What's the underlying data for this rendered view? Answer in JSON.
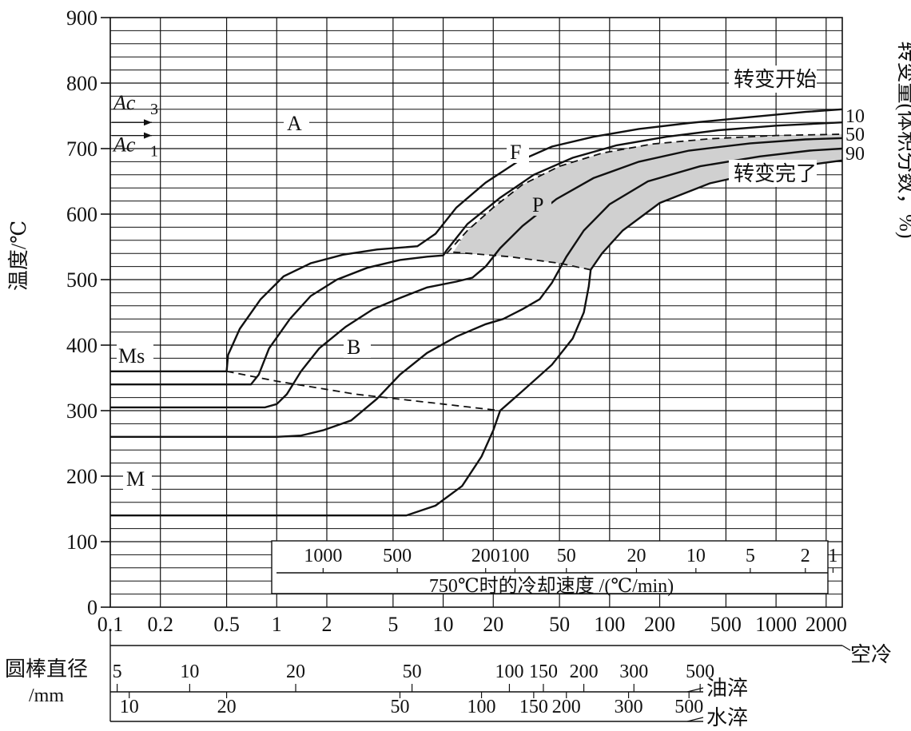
{
  "chart_data": {
    "type": "line",
    "title": "",
    "ylabel": "温度/℃",
    "right_label": "转变量(体积分数，%)",
    "y_ticks": [
      0,
      100,
      200,
      300,
      400,
      500,
      600,
      700,
      800,
      900
    ],
    "ylim": [
      0,
      900
    ],
    "x_scale": "log",
    "xlim": [
      0.1,
      2500
    ],
    "x_ticks": [
      "0.1",
      "0.2",
      "0.5",
      "1",
      "2",
      "5",
      "10",
      "20",
      "50",
      "100",
      "200",
      "500",
      "1000",
      "2000"
    ],
    "x_tick_values": [
      0.1,
      0.2,
      0.5,
      1,
      2,
      5,
      10,
      20,
      50,
      100,
      200,
      500,
      1000,
      2000
    ],
    "grid": true,
    "reference_lines": [
      {
        "label": "Ac3",
        "main": "Ac",
        "sub": "3",
        "y": 740
      },
      {
        "label": "Ac1",
        "main": "Ac",
        "sub": "1",
        "y": 720
      }
    ],
    "annotations": {
      "start": "转变开始",
      "finish": "转变完了",
      "Ms": "Ms",
      "M": "M",
      "A": "A",
      "F": "F",
      "P": "P",
      "B": "B",
      "p10": "10",
      "p50": "50",
      "p90": "90"
    },
    "cooling_rate_label": "750℃时的冷却速度 /(℃/min)",
    "cooling_rates": [
      {
        "label": "1000",
        "x": 1.9
      },
      {
        "label": "500",
        "x": 5.3
      },
      {
        "label": "200",
        "x": 18
      },
      {
        "label": "100",
        "x": 27
      },
      {
        "label": "50",
        "x": 55
      },
      {
        "label": "20",
        "x": 145
      },
      {
        "label": "10",
        "x": 330
      },
      {
        "label": "5",
        "x": 700
      },
      {
        "label": "2",
        "x": 1500
      },
      {
        "label": "1",
        "x": 2200
      }
    ],
    "air_cool_label": "空冷",
    "bar_diameter_label": "圆棒直径",
    "bar_diameter_unit": "/mm",
    "oil_quench_label": "油淬",
    "water_quench_label": "水淬",
    "oil_diameters": [
      {
        "label": "5",
        "x": 0.11
      },
      {
        "label": "10",
        "x": 0.3
      },
      {
        "label": "20",
        "x": 1.3
      },
      {
        "label": "50",
        "x": 6.5
      },
      {
        "label": "100",
        "x": 25
      },
      {
        "label": "150",
        "x": 40
      },
      {
        "label": "200",
        "x": 70
      },
      {
        "label": "300",
        "x": 140
      },
      {
        "label": "500",
        "x": 350
      }
    ],
    "water_diameters": [
      {
        "label": "10",
        "x": 0.13
      },
      {
        "label": "20",
        "x": 0.5
      },
      {
        "label": "50",
        "x": 5.5
      },
      {
        "label": "100",
        "x": 17
      },
      {
        "label": "150",
        "x": 35
      },
      {
        "label": "200",
        "x": 55
      },
      {
        "label": "300",
        "x": 130
      },
      {
        "label": "500",
        "x": 300
      }
    ],
    "series": [
      {
        "role": "start",
        "style": "solid",
        "points": [
          [
            0.1,
            360
          ],
          [
            0.5,
            360
          ],
          [
            0.51,
            385
          ],
          [
            0.6,
            425
          ],
          [
            0.8,
            470
          ],
          [
            1.1,
            505
          ],
          [
            1.6,
            525
          ],
          [
            2.5,
            538
          ],
          [
            4,
            546
          ],
          [
            7,
            551
          ],
          [
            9,
            570
          ],
          [
            12,
            610
          ],
          [
            18,
            648
          ],
          [
            28,
            680
          ],
          [
            45,
            703
          ],
          [
            80,
            718
          ],
          [
            150,
            730
          ],
          [
            300,
            739
          ],
          [
            700,
            748
          ],
          [
            1500,
            756
          ],
          [
            2500,
            760
          ]
        ]
      },
      {
        "role": "10",
        "style": "solid",
        "points": [
          [
            0.1,
            340
          ],
          [
            0.7,
            340
          ],
          [
            0.78,
            355
          ],
          [
            0.9,
            395
          ],
          [
            1.2,
            440
          ],
          [
            1.6,
            475
          ],
          [
            2.3,
            500
          ],
          [
            3.5,
            518
          ],
          [
            5.5,
            530
          ],
          [
            8,
            535
          ],
          [
            10,
            537
          ],
          [
            10.5,
            545
          ],
          [
            14,
            585
          ],
          [
            22,
            625
          ],
          [
            35,
            660
          ],
          [
            60,
            686
          ],
          [
            110,
            705
          ],
          [
            220,
            718
          ],
          [
            450,
            728
          ],
          [
            1000,
            735
          ],
          [
            2500,
            740
          ]
        ]
      },
      {
        "role": "50",
        "style": "dashed",
        "points": [
          [
            10.5,
            540
          ],
          [
            14,
            575
          ],
          [
            20,
            610
          ],
          [
            30,
            645
          ],
          [
            50,
            673
          ],
          [
            90,
            693
          ],
          [
            180,
            707
          ],
          [
            400,
            715
          ],
          [
            1000,
            720
          ],
          [
            2500,
            722
          ]
        ]
      },
      {
        "role": "mid",
        "style": "solid",
        "points": [
          [
            0.1,
            305
          ],
          [
            0.85,
            305
          ],
          [
            1.0,
            310
          ],
          [
            1.15,
            325
          ],
          [
            1.4,
            360
          ],
          [
            1.8,
            395
          ],
          [
            2.6,
            428
          ],
          [
            3.8,
            455
          ],
          [
            5.5,
            472
          ],
          [
            8,
            488
          ],
          [
            12,
            497
          ],
          [
            15,
            503
          ],
          [
            18,
            520
          ],
          [
            22,
            548
          ],
          [
            30,
            582
          ],
          [
            48,
            623
          ],
          [
            80,
            655
          ],
          [
            150,
            680
          ],
          [
            300,
            697
          ],
          [
            700,
            708
          ],
          [
            1500,
            714
          ],
          [
            2500,
            716
          ]
        ]
      },
      {
        "role": "90",
        "style": "solid",
        "points": [
          [
            0.1,
            260
          ],
          [
            1.0,
            260
          ],
          [
            1.4,
            262
          ],
          [
            1.9,
            270
          ],
          [
            2.8,
            285
          ],
          [
            4,
            318
          ],
          [
            5.5,
            355
          ],
          [
            8,
            388
          ],
          [
            12,
            413
          ],
          [
            18,
            432
          ],
          [
            23,
            440
          ],
          [
            30,
            455
          ],
          [
            38,
            470
          ],
          [
            45,
            495
          ],
          [
            55,
            535
          ],
          [
            70,
            575
          ],
          [
            100,
            615
          ],
          [
            170,
            650
          ],
          [
            350,
            673
          ],
          [
            800,
            688
          ],
          [
            1600,
            697
          ],
          [
            2500,
            700
          ]
        ]
      },
      {
        "role": "finish",
        "style": "solid",
        "points": [
          [
            0.1,
            140
          ],
          [
            6,
            140
          ],
          [
            9,
            155
          ],
          [
            13,
            185
          ],
          [
            17,
            230
          ],
          [
            20,
            270
          ],
          [
            22,
            300
          ],
          [
            30,
            330
          ],
          [
            45,
            370
          ],
          [
            60,
            410
          ],
          [
            70,
            450
          ],
          [
            75,
            490
          ],
          [
            77,
            515
          ],
          [
            90,
            540
          ],
          [
            120,
            575
          ],
          [
            200,
            617
          ],
          [
            400,
            647
          ],
          [
            900,
            667
          ],
          [
            2500,
            682
          ]
        ]
      },
      {
        "role": "ms",
        "style": "dashed",
        "points": [
          [
            0.5,
            360
          ],
          [
            1,
            345
          ],
          [
            3,
            325
          ],
          [
            10,
            310
          ],
          [
            22,
            300
          ]
        ]
      },
      {
        "role": "ps_boundary",
        "style": "dashed",
        "points": [
          [
            11.5,
            542
          ],
          [
            25,
            535
          ],
          [
            50,
            525
          ],
          [
            77,
            515
          ]
        ]
      }
    ],
    "pearlite_region": "P"
  }
}
